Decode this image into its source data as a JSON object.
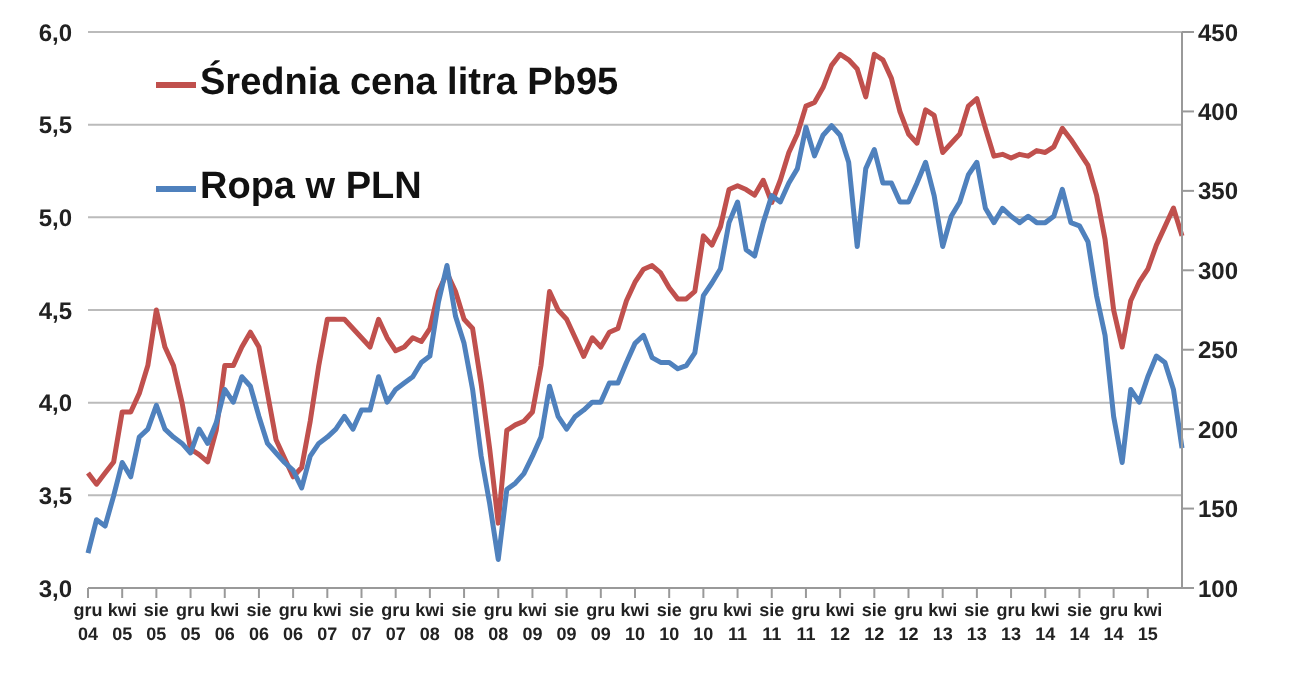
{
  "chart_data": {
    "type": "line",
    "categories": [
      "gru 04",
      null,
      null,
      null,
      "kwi 05",
      null,
      null,
      null,
      "sie 05",
      null,
      null,
      null,
      "gru 05",
      null,
      null,
      null,
      "kwi 06",
      null,
      null,
      null,
      "sie 06",
      null,
      null,
      null,
      "gru 06",
      null,
      null,
      null,
      "kwi 07",
      null,
      null,
      null,
      "sie 07",
      null,
      null,
      null,
      "gru 07",
      null,
      null,
      null,
      "kwi 08",
      null,
      null,
      null,
      "sie 08",
      null,
      null,
      null,
      "gru 08",
      null,
      null,
      null,
      "kwi 09",
      null,
      null,
      null,
      "sie 09",
      null,
      null,
      null,
      "gru 09",
      null,
      null,
      null,
      "kwi 10",
      null,
      null,
      null,
      "sie 10",
      null,
      null,
      null,
      "gru 10",
      null,
      null,
      null,
      "kwi 11",
      null,
      null,
      null,
      "sie 11",
      null,
      null,
      null,
      "gru 11",
      null,
      null,
      null,
      "kwi 12",
      null,
      null,
      null,
      "sie 12",
      null,
      null,
      null,
      "gru 12",
      null,
      null,
      null,
      "kwi 13",
      null,
      null,
      null,
      "sie 13",
      null,
      null,
      null,
      "gru 13",
      null,
      null,
      null,
      "kwi 14",
      null,
      null,
      null,
      "sie 14",
      null,
      null,
      null,
      "gru 14",
      null,
      null,
      null,
      "kwi 15",
      null,
      null,
      null,
      null
    ],
    "series": [
      {
        "name": "Średnia cena litra Pb95",
        "color": "#c0504d",
        "values": [
          3.62,
          3.56,
          3.62,
          3.68,
          3.95,
          3.95,
          4.05,
          4.2,
          4.5,
          4.3,
          4.2,
          4.0,
          3.75,
          3.72,
          3.68,
          3.85,
          4.2,
          4.2,
          4.3,
          4.38,
          4.3,
          4.05,
          3.8,
          3.7,
          3.6,
          3.65,
          3.9,
          4.2,
          4.45,
          4.45,
          4.45,
          4.4,
          4.35,
          4.3,
          4.45,
          4.35,
          4.28,
          4.3,
          4.35,
          4.33,
          4.4,
          4.6,
          4.7,
          4.6,
          4.45,
          4.4,
          4.1,
          3.75,
          3.35,
          3.85,
          3.88,
          3.9,
          3.95,
          4.2,
          4.6,
          4.5,
          4.45,
          4.35,
          4.25,
          4.35,
          4.3,
          4.38,
          4.4,
          4.55,
          4.65,
          4.72,
          4.74,
          4.7,
          4.62,
          4.56,
          4.56,
          4.6,
          4.9,
          4.85,
          4.95,
          5.15,
          5.17,
          5.15,
          5.12,
          5.2,
          5.08,
          5.2,
          5.35,
          5.45,
          5.6,
          5.62,
          5.7,
          5.82,
          5.88,
          5.85,
          5.8,
          5.65,
          5.88,
          5.85,
          5.75,
          5.57,
          5.45,
          5.4,
          5.58,
          5.55,
          5.35,
          5.4,
          5.45,
          5.6,
          5.64,
          5.48,
          5.33,
          5.34,
          5.32,
          5.34,
          5.33,
          5.36,
          5.35,
          5.38,
          5.48,
          5.42,
          5.35,
          5.28,
          5.12,
          4.88,
          4.5,
          4.3,
          4.55,
          4.65,
          4.72,
          4.85,
          4.95,
          5.05,
          4.9
        ]
      },
      {
        "name": "Ropa w PLN",
        "color": "#4f81bd",
        "axis": "y2",
        "values": [
          122,
          143,
          139,
          158,
          179,
          170,
          195,
          200,
          215,
          200,
          195,
          191,
          185,
          200,
          191,
          204,
          225,
          217,
          233,
          227,
          208,
          191,
          185,
          179,
          174,
          163,
          183,
          191,
          195,
          200,
          208,
          200,
          212,
          212,
          233,
          217,
          225,
          229,
          233,
          242,
          246,
          280,
          303,
          271,
          254,
          225,
          183,
          153,
          118,
          162,
          166,
          172,
          183,
          195,
          227,
          208,
          200,
          208,
          212,
          217,
          217,
          229,
          229,
          242,
          254,
          259,
          245,
          242,
          242,
          238,
          240,
          248,
          284,
          292,
          301,
          330,
          343,
          313,
          309,
          330,
          347,
          343,
          355,
          364,
          390,
          372,
          385,
          391,
          385,
          368,
          315,
          364,
          376,
          355,
          355,
          343,
          343,
          355,
          368,
          347,
          315,
          334,
          343,
          360,
          368,
          339,
          330,
          339,
          334,
          330,
          334,
          330,
          330,
          334,
          351,
          330,
          328,
          318,
          284,
          259,
          208,
          179,
          225,
          217,
          233,
          246,
          242,
          225,
          188
        ]
      }
    ],
    "ylim": [
      3.0,
      6.0
    ],
    "yticks": [
      {
        "value": 3.0,
        "label": "3,0"
      },
      {
        "value": 3.5,
        "label": "3,5"
      },
      {
        "value": 4.0,
        "label": "4,0"
      },
      {
        "value": 4.5,
        "label": "4,5"
      },
      {
        "value": 5.0,
        "label": "5,0"
      },
      {
        "value": 5.5,
        "label": "5,5"
      },
      {
        "value": 6.0,
        "label": "6,0"
      }
    ],
    "y2lim": [
      100,
      450
    ],
    "y2ticks": [
      100,
      150,
      200,
      250,
      300,
      350,
      400,
      450
    ],
    "grid": "y",
    "legend": "top left"
  }
}
